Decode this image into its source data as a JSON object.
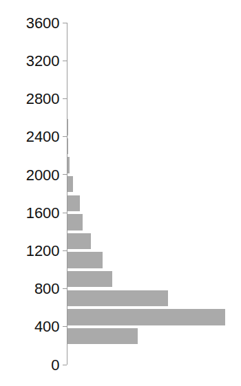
{
  "chart_data": {
    "type": "histogram",
    "orientation": "horizontal",
    "bins": [
      200,
      400,
      600,
      800,
      1000,
      1200,
      1400,
      1600,
      1800,
      2000,
      2200,
      2400,
      2600,
      2800
    ],
    "values": [
      102,
      229,
      146,
      65,
      51,
      34,
      22,
      18,
      8,
      3,
      1,
      0.5,
      0.3
    ],
    "color": "#aaaaaa",
    "ylim": [
      0,
      3600
    ],
    "yticks": [
      0,
      400,
      800,
      1200,
      1600,
      2000,
      2400,
      2800,
      3200,
      3600
    ],
    "xlim": [
      0,
      242
    ],
    "grid": false,
    "tick_labels": "y"
  }
}
